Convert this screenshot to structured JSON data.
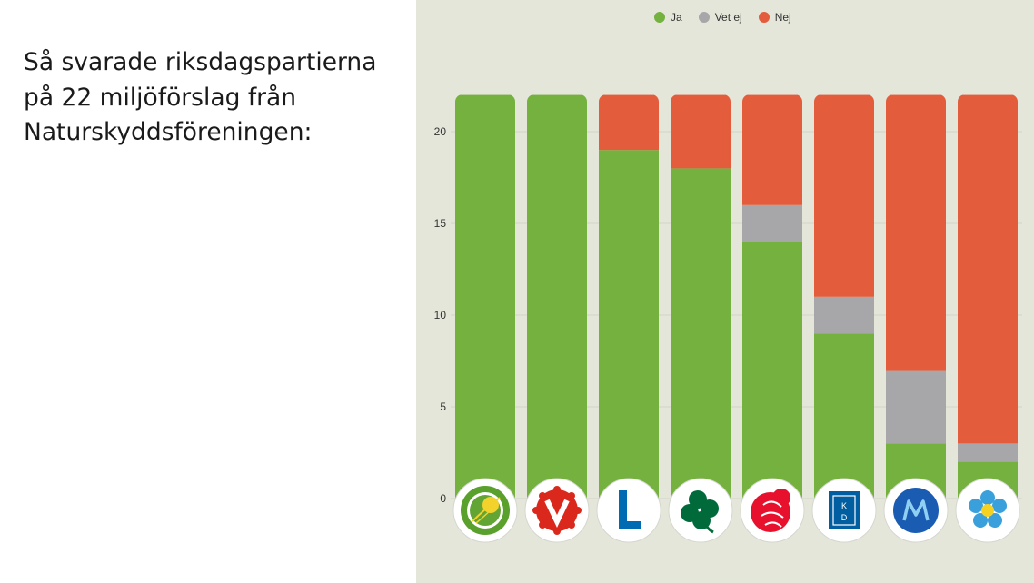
{
  "caption": {
    "lines": [
      "Så svarade riksdagspartierna",
      "på 22 miljöförslag från",
      "Naturskyddsföreningen:"
    ]
  },
  "legend": [
    {
      "label": "Ja",
      "color": "#74b13e"
    },
    {
      "label": "Vet ej",
      "color": "#a7a7a9"
    },
    {
      "label": "Nej",
      "color": "#e35d3d"
    }
  ],
  "chart_data": {
    "type": "bar",
    "stacked": true,
    "categories": [
      "MP",
      "V",
      "L",
      "C",
      "S",
      "KD",
      "M",
      "SD"
    ],
    "category_icons": [
      "mp-logo-icon",
      "v-logo-icon",
      "l-logo-icon",
      "c-logo-icon",
      "s-logo-icon",
      "kd-logo-icon",
      "m-logo-icon",
      "sd-logo-icon"
    ],
    "series": [
      {
        "name": "Ja",
        "color": "#74b13e",
        "values": [
          22,
          22,
          19,
          18,
          14,
          9,
          3,
          2
        ]
      },
      {
        "name": "Vet ej",
        "color": "#a7a7a9",
        "values": [
          0,
          0,
          0,
          0,
          2,
          2,
          4,
          1
        ]
      },
      {
        "name": "Nej",
        "color": "#e35d3d",
        "values": [
          0,
          0,
          3,
          4,
          6,
          11,
          15,
          19
        ]
      }
    ],
    "yticks": [
      0,
      5,
      10,
      15,
      20
    ],
    "ylim": [
      0,
      22
    ],
    "grid": true,
    "legend_position": "top"
  }
}
